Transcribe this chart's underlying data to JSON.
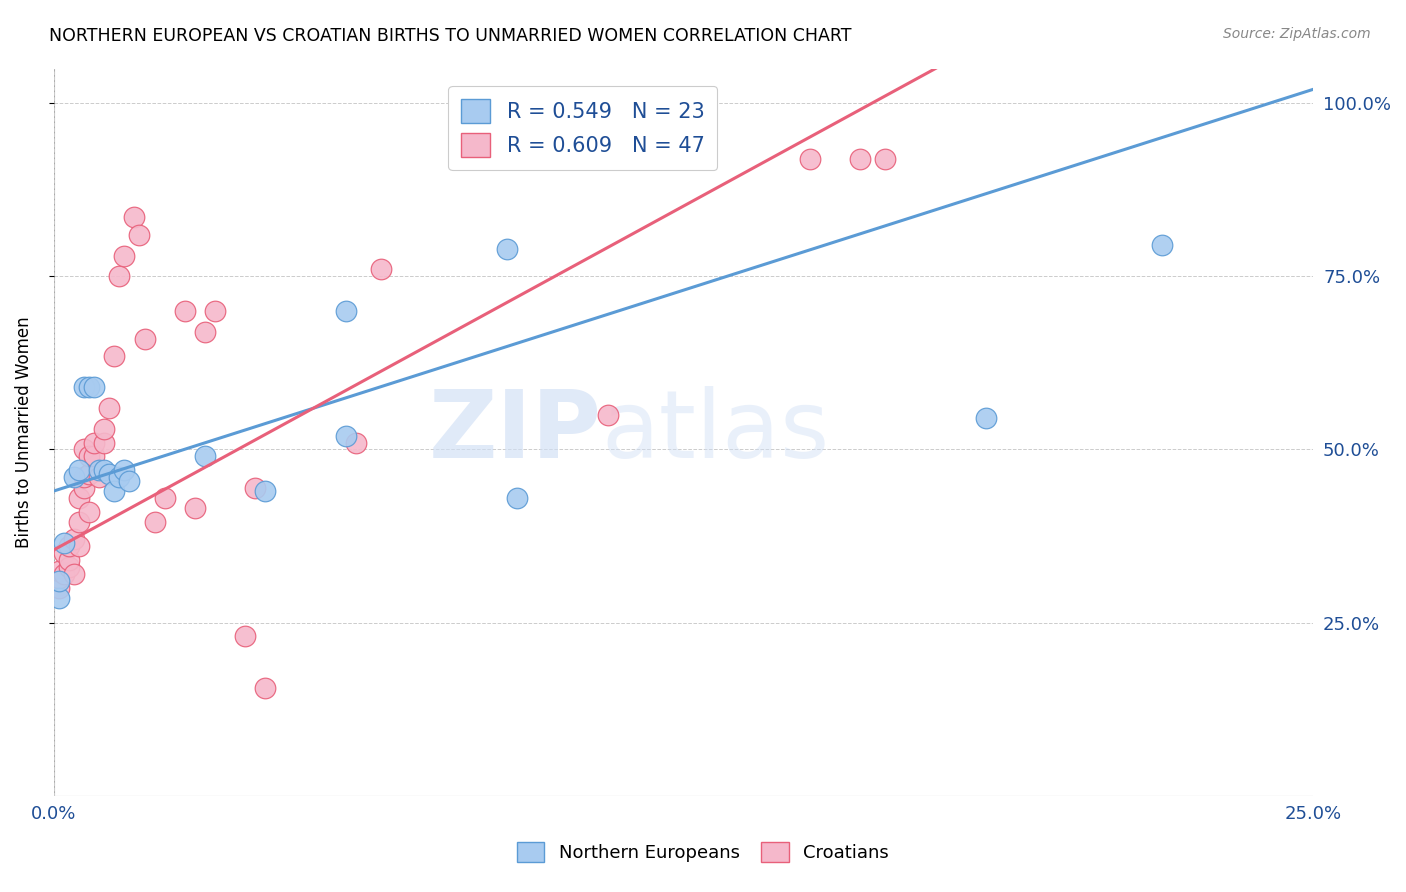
{
  "title": "NORTHERN EUROPEAN VS CROATIAN BIRTHS TO UNMARRIED WOMEN CORRELATION CHART",
  "source": "Source: ZipAtlas.com",
  "ylabel": "Births to Unmarried Women",
  "xlim": [
    0.0,
    0.25
  ],
  "ylim": [
    0.0,
    1.05
  ],
  "xticks": [
    0.0,
    0.25
  ],
  "xticklabels": [
    "0.0%",
    "25.0%"
  ],
  "yticks": [
    0.25,
    0.5,
    0.75,
    1.0
  ],
  "yticklabels": [
    "25.0%",
    "50.0%",
    "75.0%",
    "100.0%"
  ],
  "blue_R": 0.549,
  "blue_N": 23,
  "pink_R": 0.609,
  "pink_N": 47,
  "blue_color": "#A8CBF0",
  "pink_color": "#F5B8CB",
  "blue_line_color": "#5B9BD5",
  "pink_line_color": "#E8607A",
  "legend_text_color": "#1F4E96",
  "watermark_zip": "ZIP",
  "watermark_atlas": "atlas",
  "blue_line_x0": 0.0,
  "blue_line_y0": 0.44,
  "blue_line_x1": 0.25,
  "blue_line_y1": 1.02,
  "pink_line_x0": 0.0,
  "pink_line_y0": 0.355,
  "pink_line_x1": 0.175,
  "pink_line_y1": 1.05,
  "blue_points_x": [
    0.001,
    0.001,
    0.002,
    0.004,
    0.005,
    0.006,
    0.007,
    0.008,
    0.009,
    0.01,
    0.011,
    0.012,
    0.013,
    0.014,
    0.015,
    0.03,
    0.042,
    0.058,
    0.092,
    0.185,
    0.22,
    0.058,
    0.09
  ],
  "blue_points_y": [
    0.285,
    0.31,
    0.365,
    0.46,
    0.47,
    0.59,
    0.59,
    0.59,
    0.47,
    0.47,
    0.465,
    0.44,
    0.46,
    0.47,
    0.455,
    0.49,
    0.44,
    0.52,
    0.43,
    0.545,
    0.795,
    0.7,
    0.79
  ],
  "pink_points_x": [
    0.001,
    0.001,
    0.001,
    0.002,
    0.002,
    0.003,
    0.003,
    0.003,
    0.004,
    0.004,
    0.005,
    0.005,
    0.005,
    0.006,
    0.006,
    0.006,
    0.007,
    0.007,
    0.007,
    0.008,
    0.008,
    0.009,
    0.01,
    0.01,
    0.011,
    0.012,
    0.013,
    0.014,
    0.016,
    0.017,
    0.018,
    0.02,
    0.022,
    0.026,
    0.028,
    0.03,
    0.032,
    0.038,
    0.04,
    0.042,
    0.06,
    0.065,
    0.09,
    0.11,
    0.15,
    0.16,
    0.165
  ],
  "pink_points_y": [
    0.3,
    0.315,
    0.325,
    0.32,
    0.35,
    0.33,
    0.34,
    0.36,
    0.32,
    0.37,
    0.36,
    0.395,
    0.43,
    0.445,
    0.46,
    0.5,
    0.41,
    0.465,
    0.49,
    0.49,
    0.51,
    0.46,
    0.51,
    0.53,
    0.56,
    0.635,
    0.75,
    0.78,
    0.835,
    0.81,
    0.66,
    0.395,
    0.43,
    0.7,
    0.415,
    0.67,
    0.7,
    0.23,
    0.445,
    0.155,
    0.51,
    0.76,
    0.92,
    0.55,
    0.92,
    0.92,
    0.92
  ]
}
